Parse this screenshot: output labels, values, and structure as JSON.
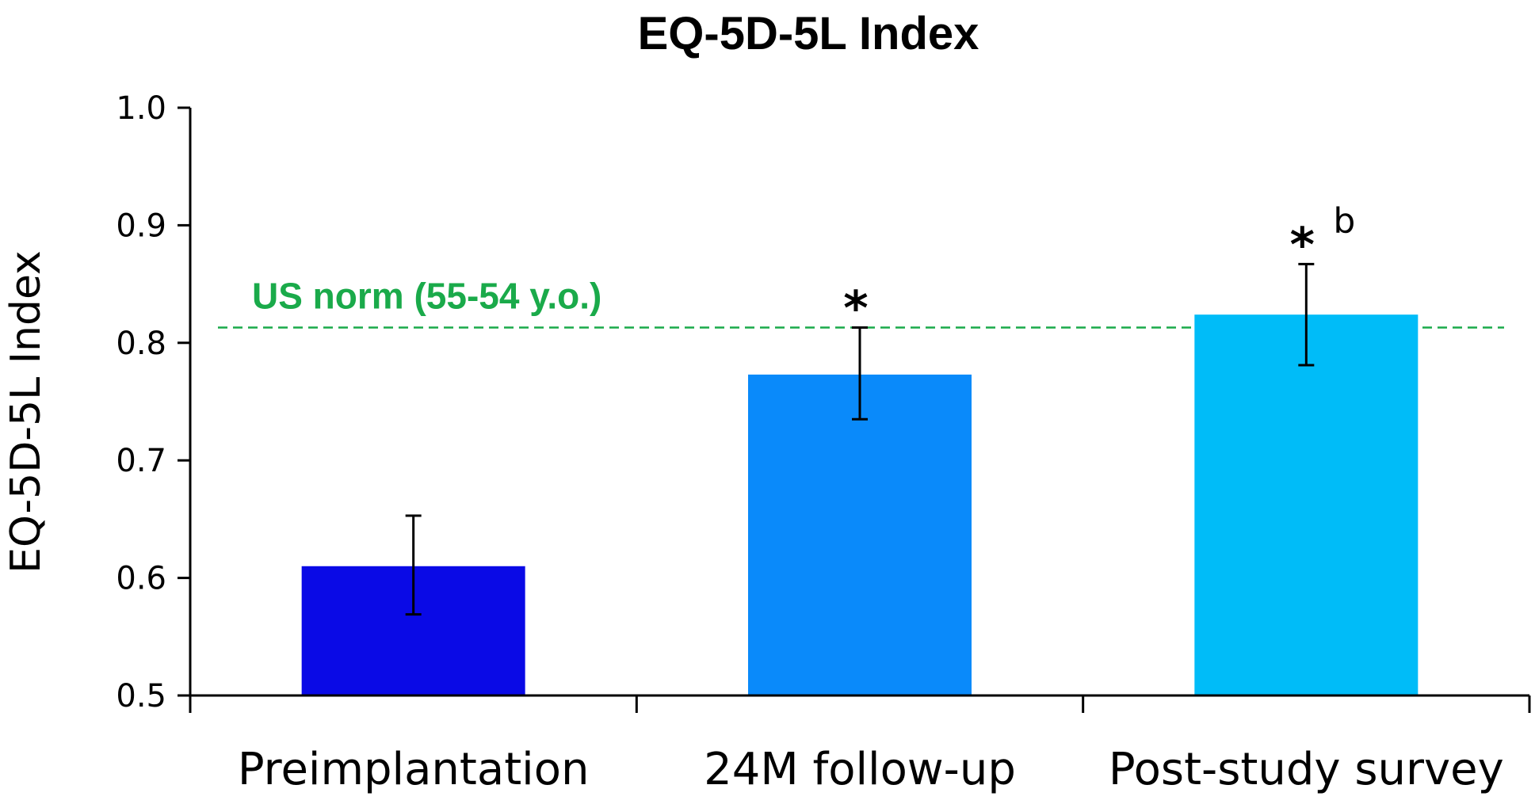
{
  "chart_data": {
    "type": "bar",
    "title": "EQ-5D-5L Index",
    "xlabel": "",
    "ylabel": "EQ-5D-5L Index",
    "ylim": [
      0.5,
      1.0
    ],
    "yticks": [
      "0.5",
      "0.6",
      "0.7",
      "0.8",
      "0.9",
      "1.0"
    ],
    "categories": [
      "Preimplantation",
      "24M follow-up",
      "Post-study survey"
    ],
    "values": [
      0.61,
      0.773,
      0.824
    ],
    "error_low": [
      0.569,
      0.735,
      0.781
    ],
    "error_high": [
      0.653,
      0.813,
      0.867
    ],
    "colors": [
      "#0a0ae6",
      "#0a8afa",
      "#00bcf8"
    ],
    "annotations": [
      "",
      "*",
      "*"
    ],
    "annotations_secondary": [
      "",
      "",
      "b"
    ],
    "reference_line": {
      "value": 0.813,
      "label": "US norm (55-54 y.o.)",
      "color": "#1aaa4a"
    },
    "grid": false
  }
}
